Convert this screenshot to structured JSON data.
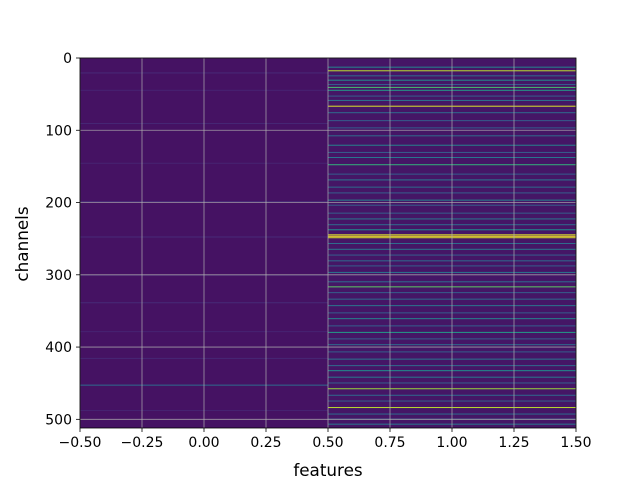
{
  "chart_data": {
    "type": "heatmap",
    "title": "",
    "xlabel": "features",
    "ylabel": "channels",
    "xlim": [
      -0.5,
      1.5
    ],
    "ylim": [
      512,
      0
    ],
    "y_inverted": true,
    "grid": true,
    "colormap": "viridis",
    "x_ticks": [
      "−0.50",
      "−0.25",
      "0.00",
      "0.25",
      "0.50",
      "0.75",
      "1.00",
      "1.25",
      "1.50"
    ],
    "x_tick_values": [
      -0.5,
      -0.25,
      0,
      0.25,
      0.5,
      0.75,
      1.0,
      1.25,
      1.5
    ],
    "y_ticks": [
      "0",
      "100",
      "200",
      "300",
      "400",
      "500"
    ],
    "y_tick_values": [
      0,
      100,
      200,
      300,
      400,
      500
    ],
    "n_rows": 512,
    "n_cols": 2,
    "column_0": {
      "base_level": 0.05,
      "highlights": [
        {
          "row": 20,
          "level": 0.12
        },
        {
          "row": 44,
          "level": 0.1
        },
        {
          "row": 90,
          "level": 0.11
        },
        {
          "row": 145,
          "level": 0.1
        },
        {
          "row": 198,
          "level": 0.12
        },
        {
          "row": 247,
          "level": 0.12
        },
        {
          "row": 300,
          "level": 0.1
        },
        {
          "row": 338,
          "level": 0.12
        },
        {
          "row": 378,
          "level": 0.1
        },
        {
          "row": 415,
          "level": 0.11
        },
        {
          "row": 452,
          "level": 0.35
        },
        {
          "row": 487,
          "level": 0.1
        }
      ]
    },
    "column_1": {
      "base_level": 0.06,
      "highlights": [
        {
          "row": 12,
          "level": 0.45
        },
        {
          "row": 17,
          "level": 0.9
        },
        {
          "row": 24,
          "level": 0.35
        },
        {
          "row": 30,
          "level": 0.5
        },
        {
          "row": 36,
          "level": 0.3
        },
        {
          "row": 40,
          "level": 0.7
        },
        {
          "row": 44,
          "level": 0.55
        },
        {
          "row": 52,
          "level": 0.3
        },
        {
          "row": 58,
          "level": 0.4
        },
        {
          "row": 66,
          "level": 0.95
        },
        {
          "row": 75,
          "level": 0.35
        },
        {
          "row": 86,
          "level": 0.3
        },
        {
          "row": 96,
          "level": 0.3
        },
        {
          "row": 107,
          "level": 0.35
        },
        {
          "row": 120,
          "level": 0.45
        },
        {
          "row": 130,
          "level": 0.3
        },
        {
          "row": 137,
          "level": 0.4
        },
        {
          "row": 147,
          "level": 0.65
        },
        {
          "row": 160,
          "level": 0.3
        },
        {
          "row": 168,
          "level": 0.4
        },
        {
          "row": 178,
          "level": 0.35
        },
        {
          "row": 186,
          "level": 0.3
        },
        {
          "row": 196,
          "level": 0.45
        },
        {
          "row": 203,
          "level": 0.3
        },
        {
          "row": 214,
          "level": 0.3
        },
        {
          "row": 222,
          "level": 0.4
        },
        {
          "row": 230,
          "level": 0.35
        },
        {
          "row": 237,
          "level": 0.5
        },
        {
          "row": 244,
          "level": 0.95
        },
        {
          "row": 246,
          "level": 1.0
        },
        {
          "row": 248,
          "level": 0.95
        },
        {
          "row": 256,
          "level": 0.35
        },
        {
          "row": 264,
          "level": 0.4
        },
        {
          "row": 272,
          "level": 0.3
        },
        {
          "row": 280,
          "level": 0.35
        },
        {
          "row": 287,
          "level": 0.3
        },
        {
          "row": 296,
          "level": 0.4
        },
        {
          "row": 309,
          "level": 0.35
        },
        {
          "row": 316,
          "level": 0.75
        },
        {
          "row": 324,
          "level": 0.3
        },
        {
          "row": 333,
          "level": 0.35
        },
        {
          "row": 342,
          "level": 0.4
        },
        {
          "row": 352,
          "level": 0.3
        },
        {
          "row": 360,
          "level": 0.45
        },
        {
          "row": 370,
          "level": 0.3
        },
        {
          "row": 379,
          "level": 0.55
        },
        {
          "row": 388,
          "level": 0.3
        },
        {
          "row": 396,
          "level": 0.35
        },
        {
          "row": 406,
          "level": 0.3
        },
        {
          "row": 416,
          "level": 0.4
        },
        {
          "row": 425,
          "level": 0.35
        },
        {
          "row": 432,
          "level": 0.5
        },
        {
          "row": 441,
          "level": 0.4
        },
        {
          "row": 449,
          "level": 0.3
        },
        {
          "row": 457,
          "level": 0.85
        },
        {
          "row": 466,
          "level": 0.35
        },
        {
          "row": 474,
          "level": 0.3
        },
        {
          "row": 483,
          "level": 0.9
        },
        {
          "row": 492,
          "level": 0.35
        },
        {
          "row": 499,
          "level": 0.3
        },
        {
          "row": 506,
          "level": 0.4
        }
      ]
    }
  }
}
